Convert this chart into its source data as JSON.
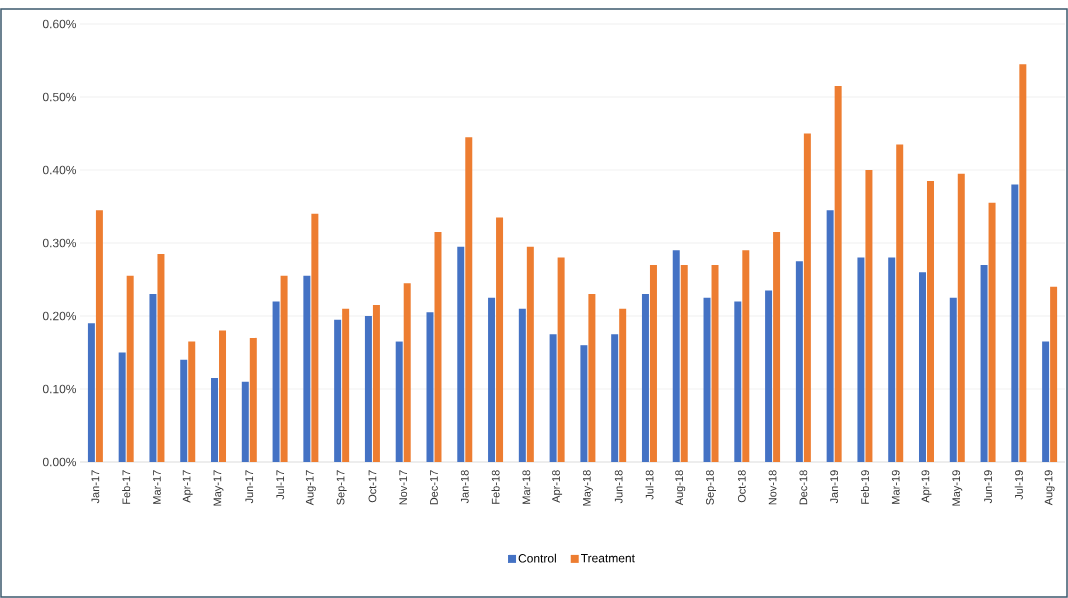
{
  "chart_data": {
    "type": "bar",
    "categories": [
      "Jan-17",
      "Feb-17",
      "Mar-17",
      "Apr-17",
      "May-17",
      "Jun-17",
      "Jul-17",
      "Aug-17",
      "Sep-17",
      "Oct-17",
      "Nov-17",
      "Dec-17",
      "Jan-18",
      "Feb-18",
      "Mar-18",
      "Apr-18",
      "May-18",
      "Jun-18",
      "Jul-18",
      "Aug-18",
      "Sep-18",
      "Oct-18",
      "Nov-18",
      "Dec-18",
      "Jan-19",
      "Feb-19",
      "Mar-19",
      "Apr-19",
      "May-19",
      "Jun-19",
      "Jul-19",
      "Aug-19"
    ],
    "series": [
      {
        "name": "Control",
        "color": "#4472c4",
        "values": [
          0.19,
          0.15,
          0.23,
          0.14,
          0.115,
          0.11,
          0.22,
          0.255,
          0.195,
          0.2,
          0.165,
          0.205,
          0.295,
          0.225,
          0.21,
          0.175,
          0.16,
          0.175,
          0.23,
          0.29,
          0.225,
          0.22,
          0.235,
          0.275,
          0.345,
          0.28,
          0.28,
          0.26,
          0.225,
          0.27,
          0.38,
          0.165
        ]
      },
      {
        "name": "Treatment",
        "color": "#ed7d31",
        "values": [
          0.345,
          0.255,
          0.285,
          0.165,
          0.18,
          0.17,
          0.255,
          0.34,
          0.21,
          0.215,
          0.245,
          0.315,
          0.445,
          0.335,
          0.295,
          0.28,
          0.23,
          0.21,
          0.27,
          0.27,
          0.27,
          0.29,
          0.315,
          0.45,
          0.515,
          0.4,
          0.435,
          0.385,
          0.395,
          0.355,
          0.545,
          0.24
        ]
      }
    ],
    "ylim": [
      0,
      0.6
    ],
    "yticks": [
      {
        "value": 0,
        "label": "0.00%"
      },
      {
        "value": 0.1,
        "label": "0.10%"
      },
      {
        "value": 0.2,
        "label": "0.20%"
      },
      {
        "value": 0.3,
        "label": "0.30%"
      },
      {
        "value": 0.4,
        "label": "0.40%"
      },
      {
        "value": 0.5,
        "label": "0.50%"
      },
      {
        "value": 0.6,
        "label": "0.60%"
      }
    ],
    "grid": "y",
    "legend": "bottom"
  }
}
